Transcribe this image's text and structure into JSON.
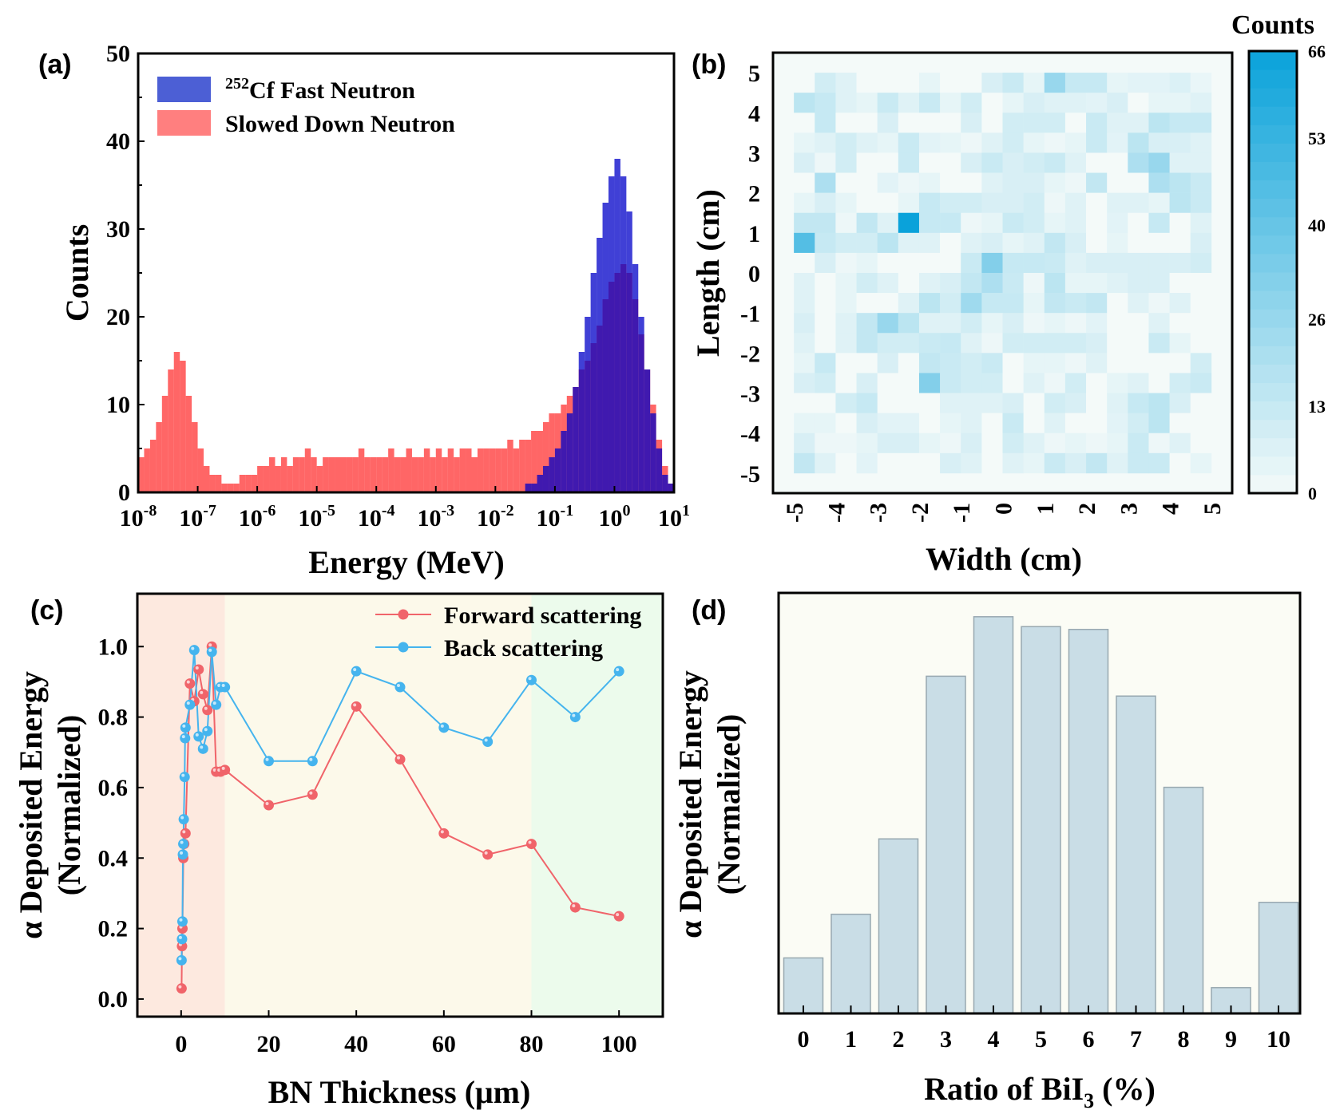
{
  "panels": {
    "a": "(a)",
    "b": "(b)",
    "c": "(c)",
    "d": "(d)"
  },
  "chart_data": [
    {
      "type": "bar",
      "subtype": "histogram",
      "xlabel": "Energy (MeV)",
      "ylabel": "Counts",
      "xscale": "log",
      "xlim": [
        1e-08,
        10
      ],
      "ylim": [
        0,
        50
      ],
      "yticks": [
        "0",
        "10",
        "20",
        "30",
        "40",
        "50"
      ],
      "xticks": [
        {
          "base": "10",
          "exp": "-8"
        },
        {
          "base": "10",
          "exp": "-7"
        },
        {
          "base": "10",
          "exp": "-6"
        },
        {
          "base": "10",
          "exp": "-5"
        },
        {
          "base": "10",
          "exp": "-4"
        },
        {
          "base": "10",
          "exp": "-3"
        },
        {
          "base": "10",
          "exp": "-2"
        },
        {
          "base": "10",
          "exp": "-1"
        },
        {
          "base": "10",
          "exp": "0"
        },
        {
          "base": "10",
          "exp": "1"
        }
      ],
      "bin_log10_start": -8,
      "bin_log10_width": 0.1,
      "legend_position": "top-left",
      "series": [
        {
          "name_sup": "252",
          "name": "Cf Fast Neutron",
          "color": "#0000c8",
          "legend_color": "#4c5fd5",
          "values": [
            0,
            0,
            0,
            0,
            0,
            0,
            0,
            0,
            0,
            0,
            0,
            0,
            0,
            0,
            0,
            0,
            0,
            0,
            0,
            0,
            0,
            0,
            0,
            0,
            0,
            0,
            0,
            0,
            0,
            0,
            0,
            0,
            0,
            0,
            0,
            0,
            0,
            0,
            0,
            0,
            0,
            0,
            0,
            0,
            0,
            0,
            0,
            0,
            0,
            0,
            0,
            0,
            0,
            0,
            0,
            0,
            0,
            0,
            0,
            0,
            0,
            0,
            0,
            0,
            0,
            1,
            1,
            2,
            3,
            4,
            5,
            7,
            9,
            12,
            16,
            20,
            25,
            29,
            33,
            36,
            38,
            36,
            32,
            26,
            20,
            14,
            9,
            5,
            2,
            1
          ]
        },
        {
          "name": "Slowed Down Neutron",
          "color": "#ff0000",
          "legend_color": "#ff7f7f",
          "values": [
            4,
            5,
            6,
            8,
            11,
            14,
            16,
            15,
            11,
            8,
            5,
            3,
            2,
            2,
            1,
            1,
            1,
            2,
            2,
            2,
            3,
            3,
            4,
            3,
            4,
            3,
            4,
            4,
            5,
            4,
            3,
            4,
            4,
            4,
            4,
            4,
            4,
            5,
            4,
            4,
            4,
            4,
            5,
            4,
            4,
            5,
            4,
            4,
            5,
            4,
            5,
            4,
            5,
            4,
            5,
            5,
            4,
            5,
            5,
            5,
            5,
            5,
            6,
            5,
            6,
            6,
            7,
            7,
            8,
            9,
            9,
            10,
            11,
            12,
            14,
            15,
            17,
            19,
            22,
            24,
            25,
            26,
            25,
            22,
            18,
            14,
            10,
            6,
            3,
            1
          ]
        }
      ]
    },
    {
      "type": "heatmap",
      "xlabel": "Width (cm)",
      "ylabel": "Length (cm)",
      "xlim": [
        -5.5,
        5.5
      ],
      "ylim": [
        -5.5,
        5.5
      ],
      "xticks": [
        "-5",
        "-4",
        "-3",
        "-2",
        "-1",
        "0",
        "1",
        "2",
        "3",
        "4",
        "5"
      ],
      "yticks": [
        "-5",
        "-4",
        "-3",
        "-2",
        "-1",
        "0",
        "1",
        "2",
        "3",
        "4",
        "5"
      ],
      "x_range": [
        -5,
        5
      ],
      "y_range": [
        -5,
        5
      ],
      "colorbar": {
        "title": "Counts",
        "ticks": [
          "0",
          "13",
          "26",
          "40",
          "53",
          "66"
        ],
        "min": 0,
        "max": 66,
        "color_min": "#f4faf9",
        "color_max": "#0aa2da"
      },
      "z_rows_top_to_bottom": [
        [
          0,
          10,
          6,
          0,
          0,
          0,
          4,
          0,
          0,
          8,
          12,
          4,
          26,
          13,
          13,
          4,
          5,
          5,
          7,
          3
        ],
        [
          16,
          13,
          6,
          4,
          12,
          6,
          12,
          4,
          10,
          0,
          4,
          8,
          6,
          6,
          5,
          8,
          0,
          4,
          4,
          6
        ],
        [
          0,
          13,
          0,
          0,
          8,
          0,
          0,
          0,
          8,
          0,
          10,
          10,
          10,
          0,
          12,
          6,
          6,
          16,
          13,
          13
        ],
        [
          4,
          6,
          10,
          6,
          4,
          12,
          5,
          4,
          2,
          6,
          10,
          4,
          2,
          4,
          12,
          5,
          16,
          8,
          8,
          6
        ],
        [
          8,
          2,
          10,
          0,
          0,
          12,
          0,
          0,
          8,
          12,
          8,
          10,
          12,
          6,
          0,
          0,
          20,
          26,
          6,
          6
        ],
        [
          0,
          20,
          0,
          0,
          5,
          2,
          4,
          0,
          0,
          6,
          8,
          8,
          4,
          2,
          14,
          0,
          0,
          20,
          16,
          12
        ],
        [
          4,
          8,
          4,
          0,
          0,
          4,
          13,
          10,
          10,
          8,
          8,
          10,
          2,
          6,
          0,
          6,
          6,
          4,
          16,
          12
        ],
        [
          14,
          14,
          2,
          14,
          6,
          66,
          13,
          13,
          2,
          4,
          12,
          10,
          4,
          6,
          0,
          5,
          0,
          13,
          0,
          6
        ],
        [
          45,
          13,
          10,
          10,
          16,
          6,
          6,
          0,
          6,
          8,
          4,
          6,
          14,
          8,
          0,
          4,
          0,
          0,
          0,
          8
        ],
        [
          0,
          8,
          2,
          4,
          0,
          0,
          0,
          0,
          12,
          32,
          13,
          13,
          12,
          6,
          8,
          8,
          8,
          8,
          8,
          10
        ],
        [
          6,
          0,
          4,
          10,
          6,
          0,
          6,
          8,
          14,
          20,
          12,
          2,
          16,
          4,
          4,
          6,
          8,
          8,
          0,
          0
        ],
        [
          6,
          0,
          4,
          0,
          0,
          6,
          16,
          10,
          24,
          13,
          13,
          4,
          14,
          12,
          14,
          0,
          6,
          2,
          6,
          0
        ],
        [
          8,
          0,
          6,
          14,
          26,
          16,
          6,
          6,
          10,
          4,
          8,
          2,
          4,
          2,
          5,
          0,
          0,
          6,
          0,
          0
        ],
        [
          6,
          0,
          6,
          14,
          10,
          10,
          12,
          13,
          6,
          2,
          10,
          10,
          10,
          10,
          8,
          0,
          0,
          12,
          4,
          0
        ],
        [
          4,
          13,
          0,
          0,
          8,
          0,
          14,
          12,
          10,
          12,
          0,
          4,
          4,
          2,
          6,
          0,
          0,
          0,
          0,
          10
        ],
        [
          8,
          10,
          0,
          8,
          0,
          0,
          32,
          12,
          10,
          10,
          0,
          6,
          2,
          10,
          0,
          4,
          6,
          0,
          10,
          12
        ],
        [
          0,
          0,
          10,
          13,
          0,
          0,
          0,
          6,
          6,
          6,
          8,
          0,
          10,
          8,
          0,
          6,
          13,
          16,
          8,
          0
        ],
        [
          4,
          4,
          0,
          8,
          5,
          5,
          0,
          4,
          6,
          0,
          12,
          0,
          6,
          0,
          0,
          5,
          10,
          16,
          0,
          0
        ],
        [
          8,
          2,
          2,
          4,
          8,
          8,
          4,
          2,
          8,
          0,
          10,
          6,
          2,
          4,
          2,
          4,
          12,
          2,
          6,
          0
        ],
        [
          14,
          6,
          0,
          5,
          0,
          0,
          0,
          8,
          6,
          0,
          6,
          4,
          12,
          8,
          14,
          6,
          12,
          12,
          0,
          4
        ]
      ]
    },
    {
      "type": "line",
      "xlabel": "BN Thickness (μm)",
      "ylabel_line1": "α Deposited Energy",
      "ylabel_line2": "(Normalized)",
      "xlim": [
        -10,
        110
      ],
      "ylim": [
        -0.05,
        1.15
      ],
      "xticks": [
        "0",
        "20",
        "40",
        "60",
        "80",
        "100"
      ],
      "yticks": [
        "0.0",
        "0.2",
        "0.4",
        "0.6",
        "0.8",
        "1.0"
      ],
      "legend_position": "top-right",
      "background_bands": [
        {
          "from": -10,
          "to": 10,
          "color": "#fde9df"
        },
        {
          "from": 10,
          "to": 80,
          "color": "#fcf9ea"
        },
        {
          "from": 80,
          "to": 110,
          "color": "#ecfbec"
        }
      ],
      "series": [
        {
          "name": "Forward scattering",
          "color": "#f0646a",
          "x": [
            0.1,
            0.2,
            0.3,
            0.5,
            0.7,
            1,
            2,
            3,
            4,
            5,
            6,
            7,
            8,
            9,
            10,
            20,
            30,
            40,
            50,
            60,
            70,
            80,
            90,
            100
          ],
          "y": [
            0.03,
            0.15,
            0.2,
            0.4,
            0.44,
            0.47,
            0.895,
            0.845,
            0.935,
            0.865,
            0.82,
            1.0,
            0.645,
            0.645,
            0.65,
            0.55,
            0.58,
            0.83,
            0.68,
            0.47,
            0.41,
            0.44,
            0.26,
            0.235
          ]
        },
        {
          "name": "Back scattering",
          "color": "#45b4ee",
          "x": [
            0.1,
            0.2,
            0.3,
            0.4,
            0.5,
            0.6,
            0.8,
            0.9,
            1,
            2,
            3,
            4,
            5,
            6,
            7,
            8,
            9,
            10,
            20,
            30,
            40,
            50,
            60,
            70,
            80,
            90,
            100
          ],
          "y": [
            0.11,
            0.17,
            0.22,
            0.41,
            0.44,
            0.51,
            0.63,
            0.74,
            0.77,
            0.835,
            0.99,
            0.745,
            0.71,
            0.76,
            0.985,
            0.835,
            0.885,
            0.885,
            0.675,
            0.675,
            0.93,
            0.885,
            0.77,
            0.73,
            0.905,
            0.8,
            0.93
          ]
        }
      ]
    },
    {
      "type": "bar",
      "xlabel_main": "Ratio of BiI",
      "xlabel_sub": "3",
      "xlabel_tail": " (%)",
      "ylabel_line1": "α Deposited Energy",
      "ylabel_line2": "(Normalized)",
      "categories": [
        "0",
        "1",
        "2",
        "3",
        "4",
        "5",
        "6",
        "7",
        "8",
        "9",
        "10"
      ],
      "values": [
        0.14,
        0.25,
        0.44,
        0.85,
        1.0,
        0.975,
        0.968,
        0.8,
        0.57,
        0.065,
        0.28
      ],
      "ylim": [
        0,
        1.06
      ],
      "bar_color": "#c9dde6",
      "bar_edge": "#98a8b0",
      "background": "#fbfcf5"
    }
  ]
}
